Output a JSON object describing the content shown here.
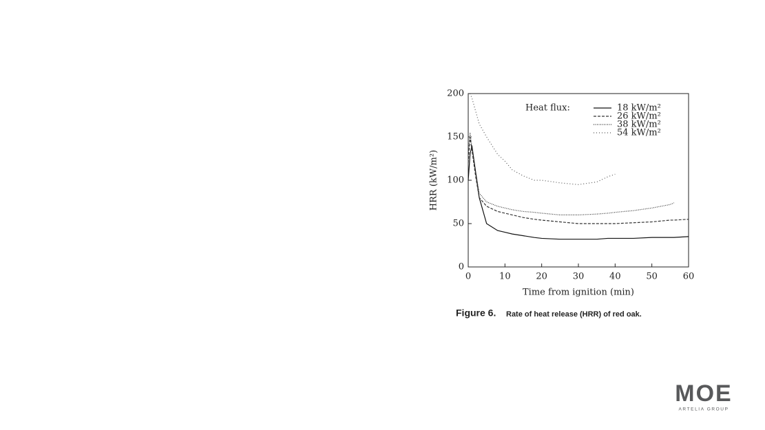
{
  "chart_data": {
    "type": "line",
    "xlabel": "Time from ignition (min)",
    "ylabel": "HRR (kW/m²)",
    "legend_title": "Heat flux:",
    "caption_label": "Figure 6.",
    "caption": "Rate of heat release (HRR) of red oak.",
    "x": [
      0,
      0.5,
      1,
      2,
      3,
      5,
      8,
      10,
      12,
      15,
      18,
      20,
      25,
      30,
      35,
      38,
      40,
      45,
      50,
      55,
      56,
      60
    ],
    "series": [
      {
        "name": "18 kW/m²",
        "color": "#111111",
        "line_style": "solid",
        "values": [
          100,
          130,
          140,
          110,
          80,
          50,
          42,
          40,
          38,
          36,
          34,
          33,
          32,
          32,
          32,
          33,
          33,
          33,
          34,
          34,
          34,
          35
        ]
      },
      {
        "name": "26 kW/m²",
        "color": "#333333",
        "line_style": "dashed",
        "values": [
          120,
          150,
          135,
          105,
          80,
          70,
          64,
          62,
          60,
          57,
          55,
          54,
          52,
          50,
          50,
          50,
          50,
          51,
          52,
          54,
          54,
          55
        ]
      },
      {
        "name": "38 kW/m²",
        "color": "#333333",
        "line_style": "dotted",
        "values": [
          130,
          155,
          138,
          110,
          85,
          75,
          70,
          68,
          66,
          64,
          63,
          62,
          60,
          60,
          61,
          62,
          63,
          65,
          68,
          72,
          74,
          null
        ]
      },
      {
        "name": "54 kW/m²",
        "color": "#555555",
        "line_style": "dashdot",
        "values": [
          null,
          200,
          195,
          180,
          165,
          150,
          130,
          122,
          112,
          105,
          100,
          100,
          97,
          95,
          98,
          104,
          107,
          null,
          null,
          null,
          null,
          null
        ]
      }
    ],
    "xlim": [
      0,
      60
    ],
    "xticks": [
      0,
      10,
      20,
      30,
      40,
      50,
      60
    ],
    "ylim": [
      0,
      200
    ],
    "yticks": [
      0,
      50,
      100,
      150,
      200
    ]
  },
  "logo": {
    "mark": "MOE",
    "group": "ARTELIA GROUP"
  }
}
